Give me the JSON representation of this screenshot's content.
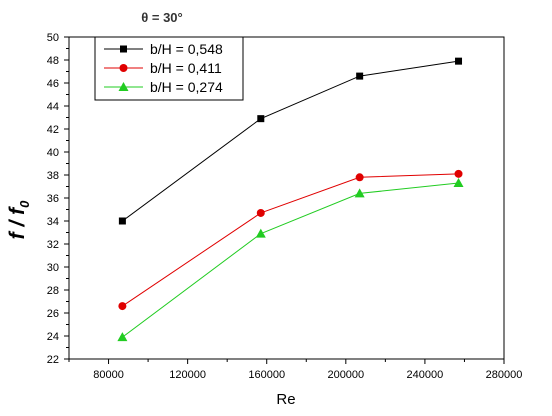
{
  "chart_data": {
    "type": "line",
    "title": "θ = 30°",
    "xlabel": "Re",
    "ylabel": "f / f",
    "ylabel_subscript": "0",
    "xlim": [
      60000,
      280000
    ],
    "ylim": [
      22,
      50
    ],
    "x_ticks": [
      80000,
      120000,
      160000,
      200000,
      240000,
      280000
    ],
    "y_ticks": [
      22,
      24,
      26,
      28,
      30,
      32,
      34,
      36,
      38,
      40,
      42,
      44,
      46,
      48,
      50
    ],
    "legend_position": "top-left",
    "x": [
      87000,
      157000,
      207000,
      257000
    ],
    "series": [
      {
        "name": "b/H = 0,548",
        "values": [
          34.0,
          42.9,
          46.6,
          47.9
        ],
        "color": "#000000",
        "marker": "square"
      },
      {
        "name": "b/H = 0,411",
        "values": [
          26.6,
          34.7,
          37.8,
          38.1
        ],
        "color": "#e00000",
        "marker": "circle"
      },
      {
        "name": "b/H = 0,274",
        "values": [
          23.9,
          32.9,
          36.4,
          37.3
        ],
        "color": "#22cc22",
        "marker": "triangle"
      }
    ]
  }
}
